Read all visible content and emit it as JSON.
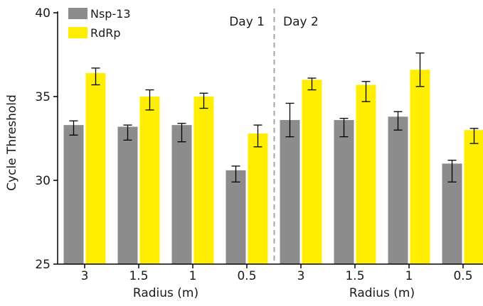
{
  "chart_data": {
    "type": "bar",
    "title": "",
    "ylabel": "Cycle Threshold",
    "ylim": [
      25,
      40
    ],
    "yticks": [
      25,
      30,
      35,
      40
    ],
    "grid": false,
    "legend_position": "top-left",
    "groups": [
      {
        "label": "Day 1",
        "xlabel": "Radius (m)",
        "categories": [
          "3",
          "1.5",
          "1",
          "0.5"
        ],
        "series": [
          {
            "name": "Nsp-13",
            "values": [
              33.3,
              33.2,
              33.3,
              30.6
            ],
            "errors": [
              0.25,
              0.1,
              0.1,
              0.25
            ],
            "low_errors": [
              0.6,
              0.8,
              1.0,
              0.7
            ]
          },
          {
            "name": "RdRp",
            "values": [
              36.4,
              35.0,
              35.0,
              32.8
            ],
            "errors": [
              0.3,
              0.4,
              0.2,
              0.5
            ],
            "low_errors": [
              0.7,
              0.8,
              0.7,
              0.8
            ]
          }
        ]
      },
      {
        "label": "Day 2",
        "xlabel": "Radius (m)",
        "categories": [
          "3",
          "1.5",
          "1",
          "0.5"
        ],
        "series": [
          {
            "name": "Nsp-13",
            "values": [
              33.6,
              33.6,
              33.8,
              31.0
            ],
            "errors": [
              1.0,
              0.1,
              0.3,
              0.2
            ],
            "low_errors": [
              1.0,
              1.0,
              0.8,
              1.1
            ]
          },
          {
            "name": "RdRp",
            "values": [
              36.0,
              35.7,
              36.6,
              33.0
            ],
            "errors": [
              0.1,
              0.2,
              1.0,
              0.1
            ],
            "low_errors": [
              0.6,
              1.0,
              1.0,
              0.8
            ]
          }
        ]
      }
    ],
    "colors": {
      "Nsp-13": "#8c8c8c",
      "RdRp": "#ffee00"
    }
  }
}
